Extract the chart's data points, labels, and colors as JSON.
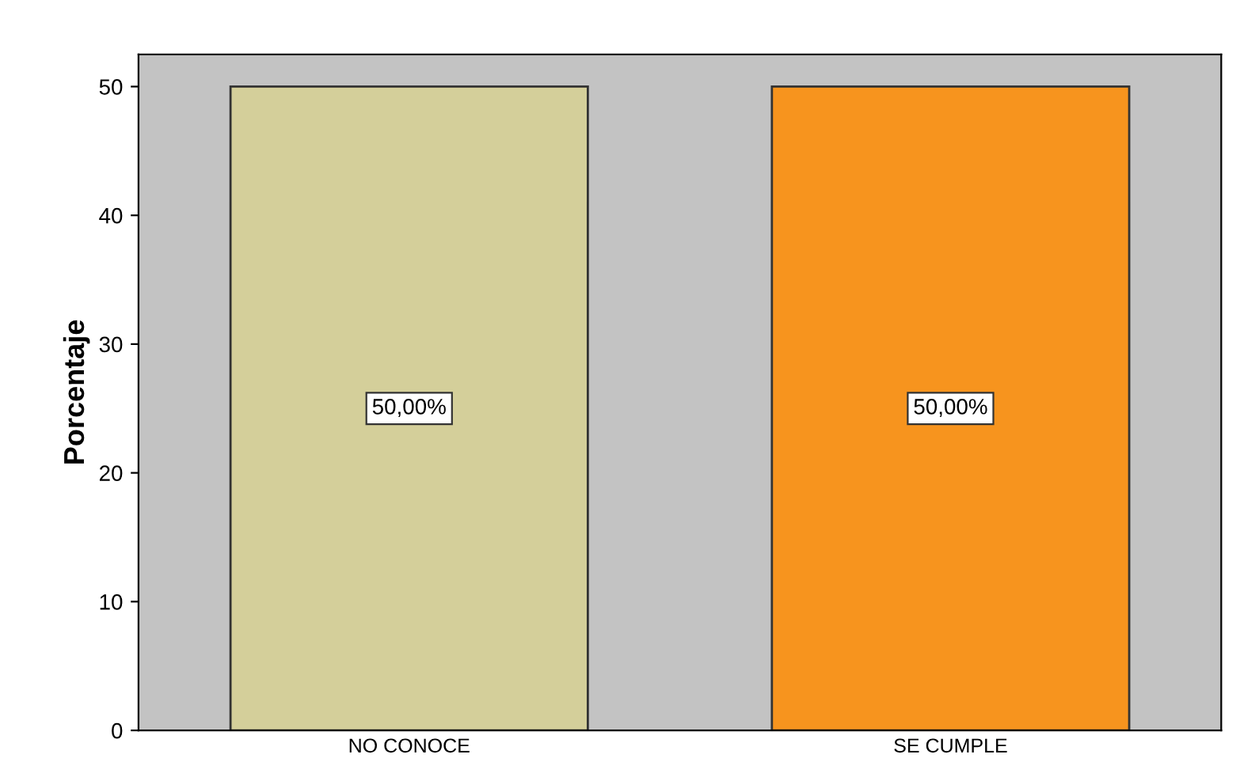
{
  "chart_data": {
    "type": "bar",
    "ylabel": "Porcentaje",
    "categories": [
      "NO CONOCE",
      "SE CUMPLE"
    ],
    "values": [
      50,
      50
    ],
    "colors": [
      "#d4cf9a",
      "#f7941e"
    ],
    "value_labels": [
      "50,00%",
      "50,00%"
    ],
    "ylim": [
      0,
      52.5
    ],
    "yticks": [
      0,
      10,
      20,
      30,
      40,
      50
    ],
    "grid": false
  }
}
